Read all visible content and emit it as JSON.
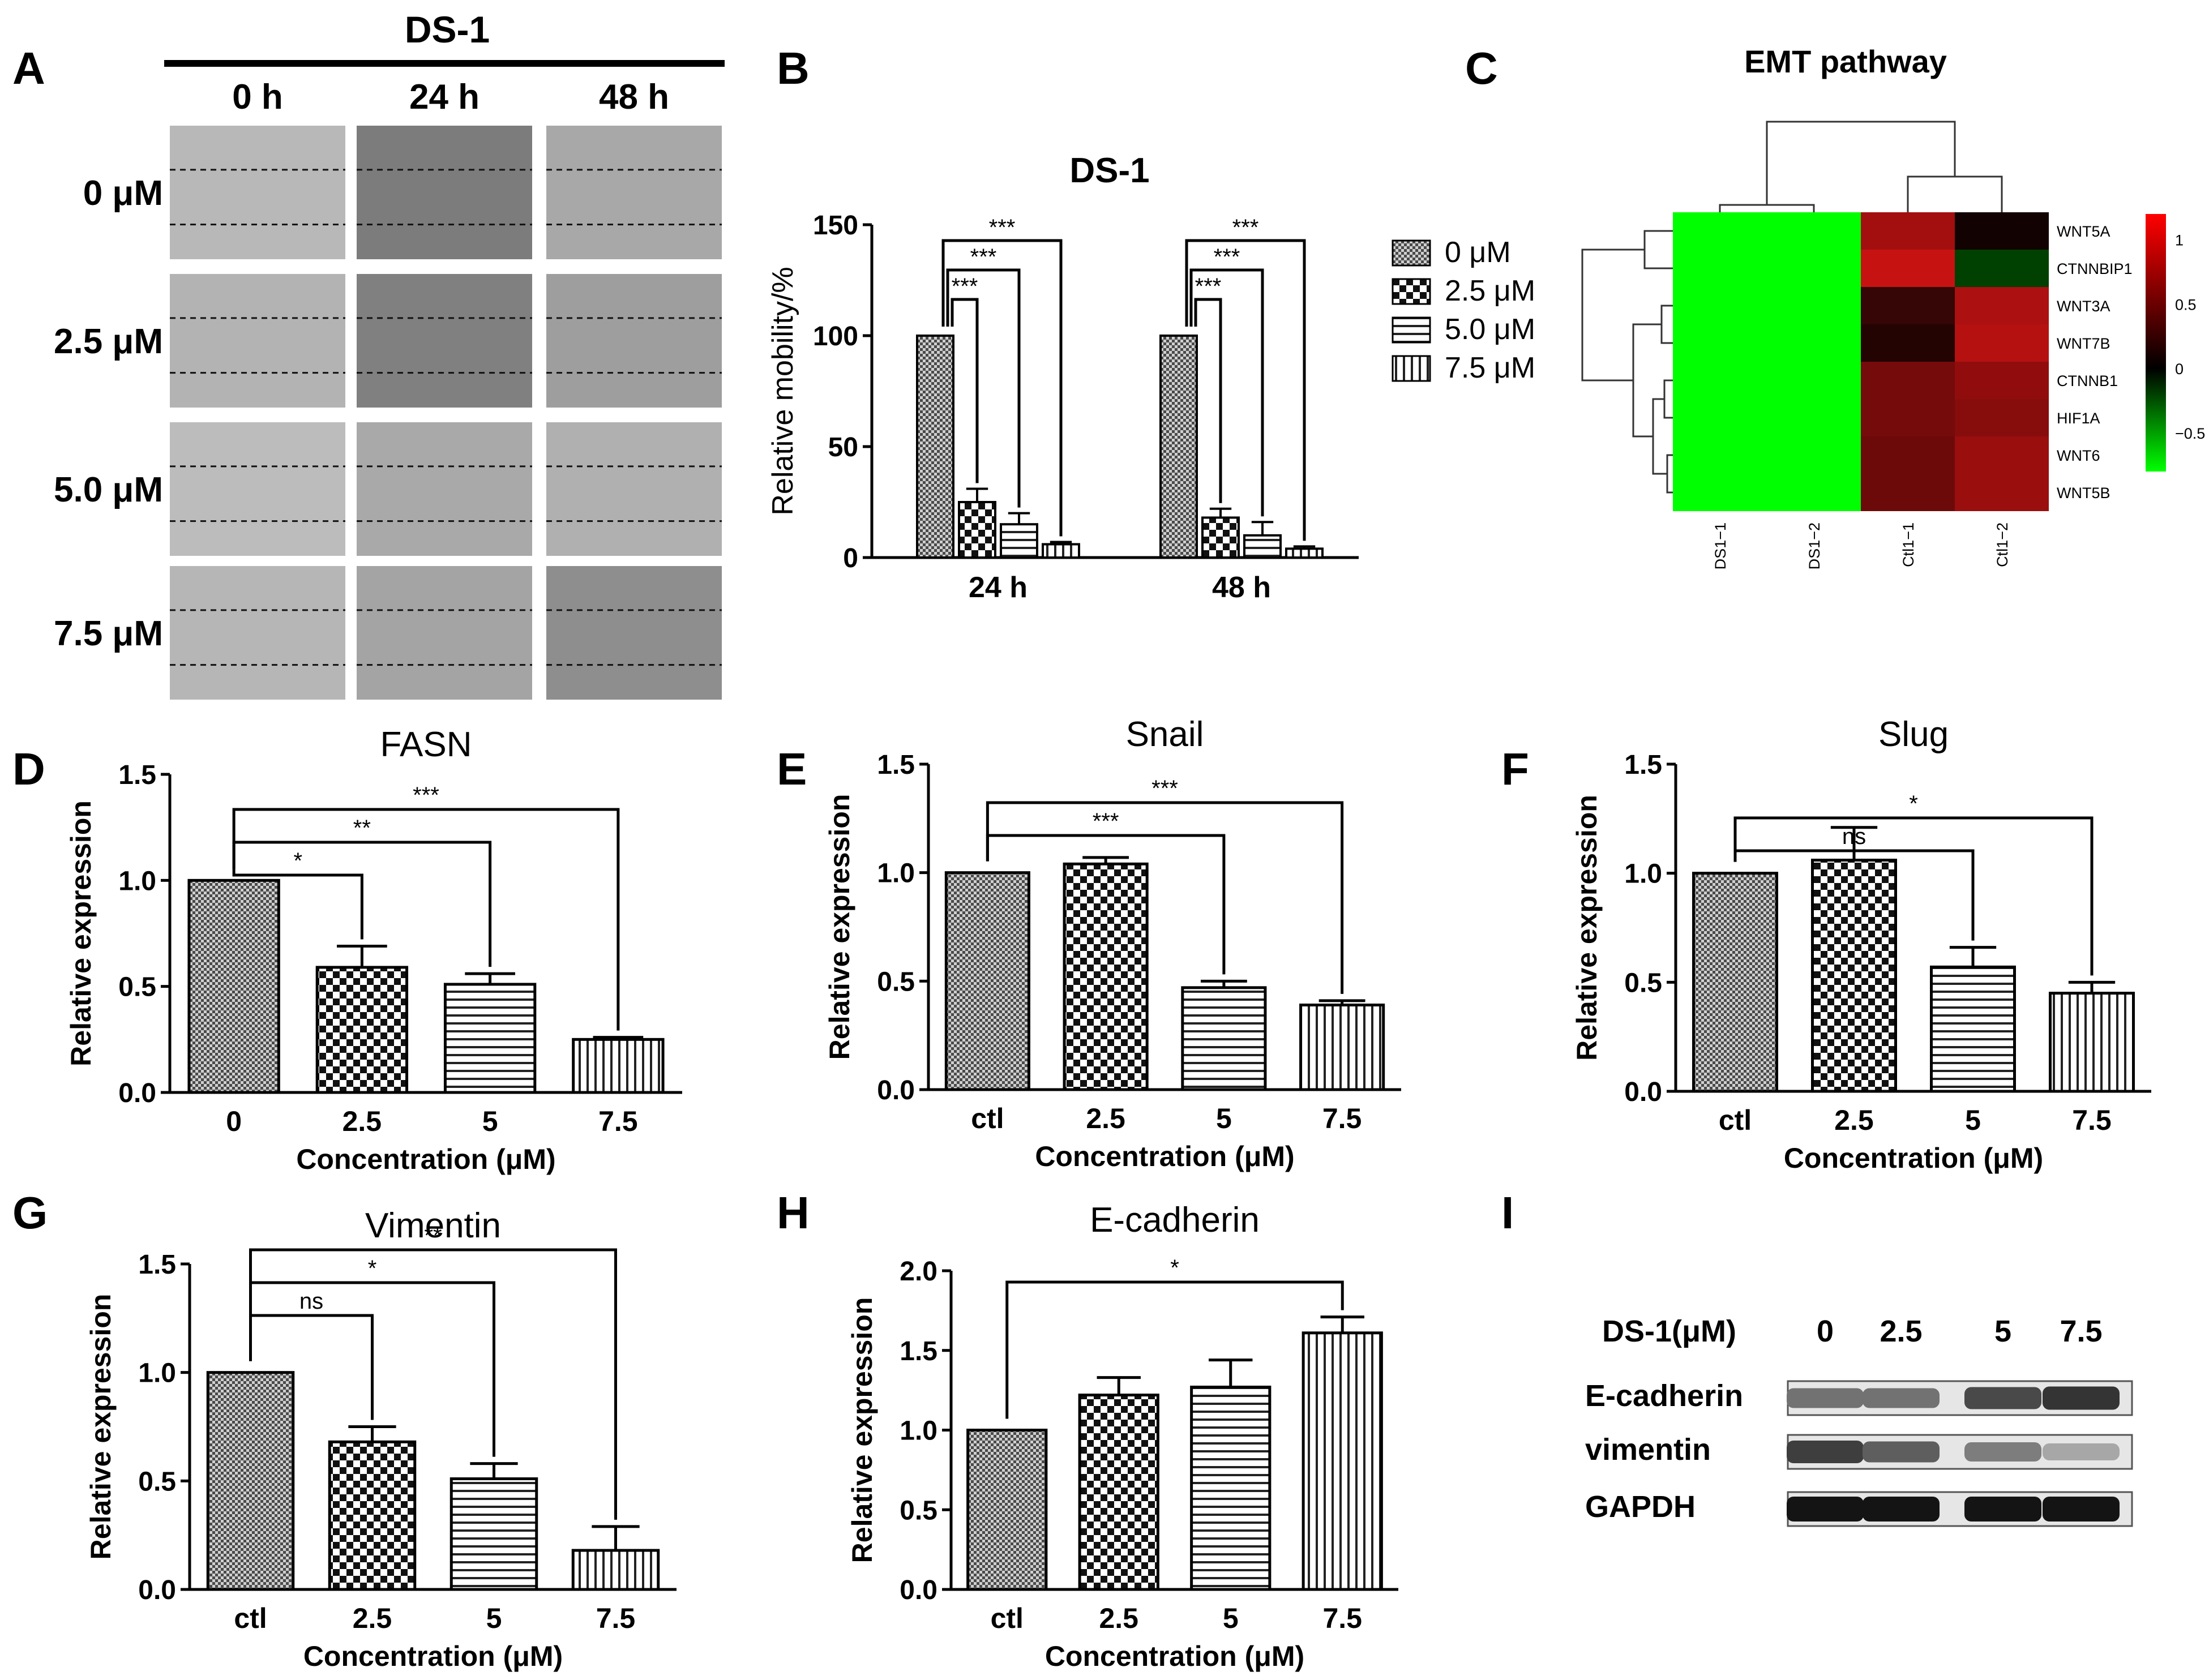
{
  "figure": {
    "panel_letters": [
      "A",
      "B",
      "C",
      "D",
      "E",
      "F",
      "G",
      "H",
      "I"
    ]
  },
  "panel_a": {
    "title": "DS-1",
    "columns": [
      "0 h",
      "24 h",
      "48 h"
    ],
    "rows": [
      "0 μM",
      "2.5 μM",
      "5.0 μM",
      "7.5 μM"
    ],
    "cell_shades": [
      [
        "#b8b8b8",
        "#7c7c7c",
        "#a8a8a8"
      ],
      [
        "#b3b3b3",
        "#808080",
        "#9e9e9e"
      ],
      [
        "#bcbcbc",
        "#a9a9a9",
        "#b0b0b0"
      ],
      [
        "#b6b6b6",
        "#a4a4a4",
        "#8e8e8e"
      ]
    ]
  },
  "legend_b": {
    "items": [
      "0 μM",
      "2.5 μM",
      "5.0 μM",
      "7.5 μM"
    ]
  },
  "heatmap_c": {
    "title": "EMT pathway",
    "col_labels": [
      "DS1−1",
      "DS1−2",
      "Ctl1−1",
      "Ctl1−2"
    ],
    "row_labels": [
      "WNT5A",
      "CTNNBIP1",
      "WNT3A",
      "WNT7B",
      "CTNNB1",
      "HIF1A",
      "WNT6",
      "WNT5B"
    ],
    "colorbar_ticks": [
      "1",
      "0.5",
      "0",
      "−0.5"
    ],
    "colors": {
      "low": "#00ff00",
      "mid": "#000000",
      "high": "#ff0000"
    }
  },
  "western_i": {
    "header_label": "DS-1(μM)",
    "lanes": [
      "0",
      "2.5",
      "5",
      "7.5"
    ],
    "bands": [
      {
        "label": "E-cadherin",
        "intensity": [
          0.55,
          0.55,
          0.75,
          0.85
        ]
      },
      {
        "label": "vimentin",
        "intensity": [
          0.8,
          0.65,
          0.5,
          0.3
        ]
      },
      {
        "label": "GAPDH",
        "intensity": [
          1,
          1,
          1,
          1
        ]
      }
    ]
  },
  "chart_data": [
    {
      "panel": "B",
      "type": "bar",
      "title": "DS-1",
      "xlabel": "",
      "ylabel": "Relative mobility/%",
      "categories": [
        "24 h",
        "48 h"
      ],
      "ylim": [
        0,
        150
      ],
      "yticks": [
        "0",
        "50",
        "100",
        "150"
      ],
      "series": [
        {
          "name": "0 μM",
          "values": [
            100,
            100
          ],
          "errors": [
            0,
            0
          ]
        },
        {
          "name": "2.5 μM",
          "values": [
            25,
            18
          ],
          "errors": [
            6,
            4
          ]
        },
        {
          "name": "5.0 μM",
          "values": [
            15,
            10
          ],
          "errors": [
            5,
            6
          ]
        },
        {
          "name": "7.5 μM",
          "values": [
            6,
            4
          ],
          "errors": [
            1,
            1
          ]
        }
      ],
      "significance": [
        {
          "group": 0,
          "from": 0,
          "to": 1,
          "label": "***"
        },
        {
          "group": 0,
          "from": 0,
          "to": 2,
          "label": "***"
        },
        {
          "group": 0,
          "from": 0,
          "to": 3,
          "label": "***"
        },
        {
          "group": 1,
          "from": 0,
          "to": 1,
          "label": "***"
        },
        {
          "group": 1,
          "from": 0,
          "to": 2,
          "label": "***"
        },
        {
          "group": 1,
          "from": 0,
          "to": 3,
          "label": "***"
        }
      ]
    },
    {
      "panel": "C",
      "type": "heatmap",
      "title": "EMT pathway",
      "x": [
        "DS1−1",
        "DS1−2",
        "Ctl1−1",
        "Ctl1−2"
      ],
      "y": [
        "WNT5A",
        "CTNNBIP1",
        "WNT3A",
        "WNT7B",
        "CTNNB1",
        "HIF1A",
        "WNT6",
        "WNT5B"
      ],
      "values": [
        [
          -0.85,
          -0.9,
          0.9,
          0.1
        ],
        [
          -0.85,
          -0.8,
          1.1,
          -0.2
        ],
        [
          -0.85,
          -0.85,
          0.3,
          0.95
        ],
        [
          -0.85,
          -0.85,
          0.2,
          1.0
        ],
        [
          -0.8,
          -0.85,
          0.65,
          0.8
        ],
        [
          -0.8,
          -0.85,
          0.65,
          0.75
        ],
        [
          -0.8,
          -0.85,
          0.6,
          0.85
        ],
        [
          -0.8,
          -0.85,
          0.6,
          0.85
        ]
      ],
      "zlim": [
        -0.8,
        1.2
      ],
      "colorbar_ticks": [
        1,
        0.5,
        0,
        -0.5
      ]
    },
    {
      "panel": "D",
      "type": "bar",
      "title": "FASN",
      "xlabel": "Concentration (μM)",
      "ylabel": "Relative expression",
      "categories": [
        "0",
        "2.5",
        "5",
        "7.5"
      ],
      "values": [
        1.0,
        0.59,
        0.51,
        0.25
      ],
      "errors": [
        0,
        0.1,
        0.05,
        0.01
      ],
      "ylim": [
        0,
        1.5
      ],
      "yticks": [
        "0.0",
        "0.5",
        "1.0",
        "1.5"
      ],
      "significance": [
        {
          "from": 0,
          "to": 1,
          "label": "*"
        },
        {
          "from": 0,
          "to": 2,
          "label": "**"
        },
        {
          "from": 0,
          "to": 3,
          "label": "***"
        }
      ]
    },
    {
      "panel": "E",
      "type": "bar",
      "title": "Snail",
      "xlabel": "Concentration (μM)",
      "ylabel": "Relative expression",
      "categories": [
        "ctl",
        "2.5",
        "5",
        "7.5"
      ],
      "values": [
        1.0,
        1.04,
        0.47,
        0.39
      ],
      "errors": [
        0,
        0.03,
        0.03,
        0.02
      ],
      "ylim": [
        0,
        1.5
      ],
      "yticks": [
        "0.0",
        "0.5",
        "1.0",
        "1.5"
      ],
      "significance": [
        {
          "from": 0,
          "to": 2,
          "label": "***"
        },
        {
          "from": 0,
          "to": 3,
          "label": "***"
        }
      ]
    },
    {
      "panel": "F",
      "type": "bar",
      "title": "Slug",
      "xlabel": "Concentration (μM)",
      "ylabel": "Relative expression",
      "categories": [
        "ctl",
        "2.5",
        "5",
        "7.5"
      ],
      "values": [
        1.0,
        1.06,
        0.57,
        0.45
      ],
      "errors": [
        0,
        0.15,
        0.09,
        0.05
      ],
      "ylim": [
        0,
        1.5
      ],
      "yticks": [
        "0.0",
        "0.5",
        "1.0",
        "1.5"
      ],
      "significance": [
        {
          "from": 0,
          "to": 2,
          "label": "ns"
        },
        {
          "from": 0,
          "to": 3,
          "label": "*"
        }
      ]
    },
    {
      "panel": "G",
      "type": "bar",
      "title": "Vimentin",
      "xlabel": "Concentration (μM)",
      "ylabel": "Relative expression",
      "categories": [
        "ctl",
        "2.5",
        "5",
        "7.5"
      ],
      "values": [
        1.0,
        0.68,
        0.51,
        0.18
      ],
      "errors": [
        0,
        0.07,
        0.07,
        0.11
      ],
      "ylim": [
        0,
        1.5
      ],
      "yticks": [
        "0.0",
        "0.5",
        "1.0",
        "1.5"
      ],
      "significance": [
        {
          "from": 0,
          "to": 1,
          "label": "ns"
        },
        {
          "from": 0,
          "to": 2,
          "label": "*"
        },
        {
          "from": 0,
          "to": 3,
          "label": "**"
        }
      ]
    },
    {
      "panel": "H",
      "type": "bar",
      "title": "E-cadherin",
      "xlabel": "Concentration (μM)",
      "ylabel": "Relative expression",
      "categories": [
        "ctl",
        "2.5",
        "5",
        "7.5"
      ],
      "values": [
        1.0,
        1.22,
        1.27,
        1.61
      ],
      "errors": [
        0,
        0.11,
        0.17,
        0.1
      ],
      "ylim": [
        0,
        2.0
      ],
      "yticks": [
        "0.0",
        "0.5",
        "1.0",
        "1.5",
        "2.0"
      ],
      "significance": [
        {
          "from": 0,
          "to": 3,
          "label": "*"
        }
      ]
    }
  ]
}
